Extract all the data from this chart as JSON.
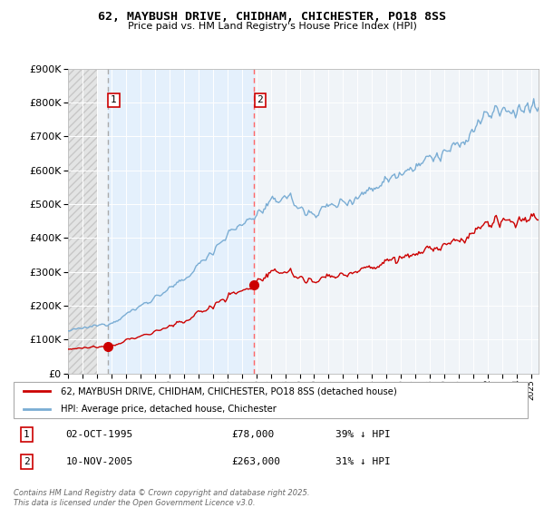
{
  "title": "62, MAYBUSH DRIVE, CHIDHAM, CHICHESTER, PO18 8SS",
  "subtitle": "Price paid vs. HM Land Registry's House Price Index (HPI)",
  "transactions": [
    {
      "label": "1",
      "date": "02-OCT-1995",
      "price": 78000,
      "x": 1995.75
    },
    {
      "label": "2",
      "date": "10-NOV-2005",
      "price": 263000,
      "x": 2005.86
    }
  ],
  "hpi_color": "#7aadd4",
  "price_color": "#cc0000",
  "vline1_color": "#aaaaaa",
  "vline2_color": "#ff6666",
  "shaded_region_color": "#ddeeff",
  "hatch_color": "#cccccc",
  "ylim": [
    0,
    900000
  ],
  "xlim_start": 1993,
  "xlim_end": 2025.5,
  "ylabel_ticks": [
    0,
    100000,
    200000,
    300000,
    400000,
    500000,
    600000,
    700000,
    800000,
    900000
  ],
  "footer": "Contains HM Land Registry data © Crown copyright and database right 2025.\nThis data is licensed under the Open Government Licence v3.0.",
  "legend_line1": "62, MAYBUSH DRIVE, CHIDHAM, CHICHESTER, PO18 8SS (detached house)",
  "legend_line2": "HPI: Average price, detached house, Chichester",
  "table_row1_date": "02-OCT-1995",
  "table_row1_price": "£78,000",
  "table_row1_hpi": "39% ↓ HPI",
  "table_row2_date": "10-NOV-2005",
  "table_row2_price": "£263,000",
  "table_row2_hpi": "31% ↓ HPI"
}
